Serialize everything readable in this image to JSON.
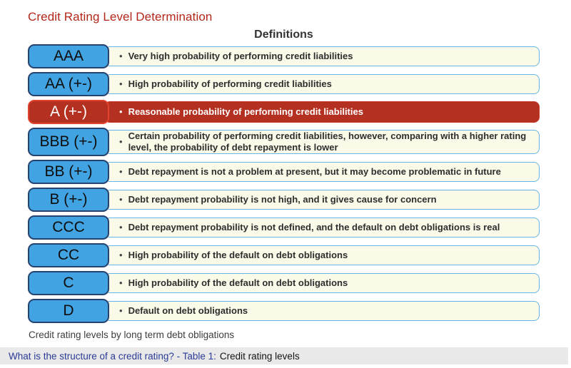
{
  "page": {
    "title": "Credit Rating Level Determination",
    "column_header": "Definitions",
    "caption": "Credit rating levels by long term debt obligations"
  },
  "icons": {
    "bullet": "•"
  },
  "colors": {
    "title_red": "#b3271a",
    "button_blue": "#41a3e2",
    "button_border_navy": "#26426e",
    "highlight_red": "#b43021",
    "highlight_border_red": "#e2422e",
    "definition_cream": "#fbf9e8",
    "definition_border_blue": "#66b5e6",
    "footer_bar_gray": "#e9e9e9",
    "footer_link_navy": "#2b3a96"
  },
  "ratings": [
    {
      "level": "AAA",
      "definition": "Very high probability of performing credit liabilities",
      "highlighted": false
    },
    {
      "level": "AA (+-)",
      "definition": "High probability of performing credit liabilities",
      "highlighted": false
    },
    {
      "level": "A (+-)",
      "definition": "Reasonable probability of performing credit liabilities",
      "highlighted": true
    },
    {
      "level": "BBB (+-)",
      "definition": "Certain probability of performing credit liabilities, however, comparing with a higher rating level, the probability of debt repayment is lower",
      "highlighted": false
    },
    {
      "level": "BB (+-)",
      "definition": "Debt repayment is not a problem at present, but it may become problematic in future",
      "highlighted": false
    },
    {
      "level": "B (+-)",
      "definition": "Debt repayment probability is not high, and it gives cause for concern",
      "highlighted": false
    },
    {
      "level": "CCC",
      "definition": "Debt repayment probability is not defined, and the default on debt obligations is real",
      "highlighted": false
    },
    {
      "level": "CC",
      "definition": "High probability of the default on debt obligations",
      "highlighted": false
    },
    {
      "level": "C",
      "definition": "High probability of the default on debt obligations",
      "highlighted": false
    },
    {
      "level": "D",
      "definition": "Default on debt obligations",
      "highlighted": false
    }
  ],
  "footer_bar": {
    "link_text": "What is the structure of a credit rating? - Table 1:",
    "plain_text": "Credit rating levels"
  }
}
